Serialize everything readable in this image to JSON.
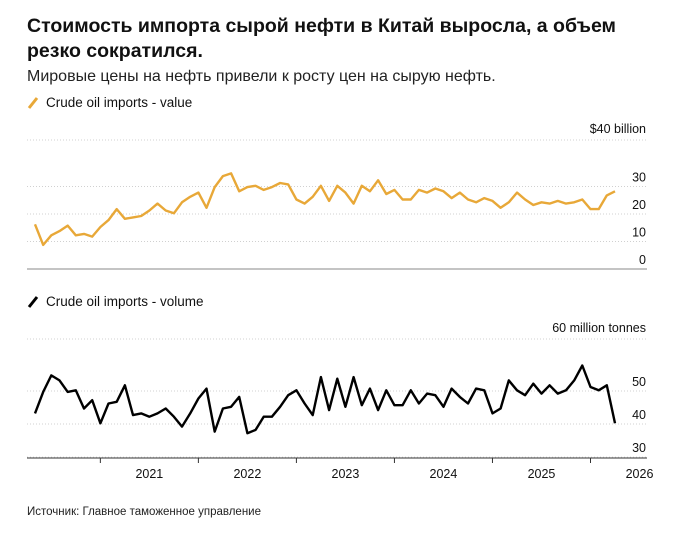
{
  "title": "Стоимость импорта сырой нефти в Китай выросла, а объем резко сократился.",
  "subtitle": "Мировые цены на нефть привели к росту цен на сырую нефть.",
  "source": "Источник: Главное таможенное управление",
  "colors": {
    "value": "#e8a838",
    "volume": "#000000",
    "grid": "#d0d0d0",
    "axis": "#333333"
  },
  "x_ticks": [
    "2021",
    "2022",
    "2023",
    "2024",
    "2025",
    "2026"
  ],
  "chart_data": [
    {
      "type": "line",
      "legend": "Crude oil imports - value",
      "y_unit_label": "$40 billion",
      "y_ticks": [
        "30",
        "20",
        "10",
        "0"
      ],
      "ylim": [
        0,
        40
      ],
      "xlim": [
        "2020-05",
        "2026-04"
      ],
      "grid": true,
      "series": [
        {
          "name": "Crude oil imports - value",
          "x": [
            "2020-05",
            "2020-06",
            "2020-07",
            "2020-08",
            "2020-09",
            "2020-10",
            "2020-11",
            "2020-12",
            "2021-01",
            "2021-02",
            "2021-03",
            "2021-04",
            "2021-05",
            "2021-06",
            "2021-07",
            "2021-08",
            "2021-09",
            "2021-10",
            "2021-11",
            "2021-12",
            "2022-01",
            "2022-02",
            "2022-03",
            "2022-04",
            "2022-05",
            "2022-06",
            "2022-07",
            "2022-08",
            "2022-09",
            "2022-10",
            "2022-11",
            "2022-12",
            "2023-01",
            "2023-02",
            "2023-03",
            "2023-04",
            "2023-05",
            "2023-06",
            "2023-07",
            "2023-08",
            "2023-09",
            "2023-10",
            "2023-11",
            "2023-12",
            "2024-01",
            "2024-02",
            "2024-03",
            "2024-04",
            "2024-05",
            "2024-06",
            "2024-07",
            "2024-08",
            "2024-09",
            "2024-10",
            "2024-11",
            "2024-12",
            "2025-01",
            "2025-02",
            "2025-03",
            "2025-04",
            "2025-05",
            "2025-06",
            "2025-07",
            "2025-08",
            "2025-09",
            "2025-10",
            "2025-11",
            "2025-12",
            "2026-01",
            "2026-02",
            "2026-03",
            "2026-04"
          ],
          "values": [
            13,
            5.5,
            9,
            10.5,
            12.5,
            9,
            9.5,
            8.5,
            12,
            14.5,
            18.5,
            15,
            15.5,
            16,
            18,
            20.5,
            18,
            17,
            21,
            23,
            24.5,
            19,
            26.5,
            30.5,
            31.5,
            25,
            26.5,
            27,
            25.5,
            26.5,
            28,
            27.5,
            22,
            20.5,
            23,
            27,
            21.5,
            27,
            24.5,
            20.5,
            27,
            25,
            29,
            24,
            25.5,
            22,
            22,
            25.5,
            24.5,
            26,
            25,
            22.5,
            24.5,
            22,
            21,
            22.5,
            21.5,
            19,
            21,
            24.5,
            22,
            20,
            21,
            20.5,
            21.5,
            20.5,
            21,
            22,
            18.5,
            18.5,
            23.5,
            25
          ]
        }
      ]
    },
    {
      "type": "line",
      "legend": "Crude oil imports - volume",
      "y_unit_label": "60 million tonnes",
      "y_ticks": [
        "50",
        "40",
        "30"
      ],
      "ylim": [
        27,
        60
      ],
      "xlim": [
        "2020-05",
        "2026-04"
      ],
      "grid": true,
      "series": [
        {
          "name": "Crude oil imports - volume",
          "x": [
            "2020-05",
            "2020-06",
            "2020-07",
            "2020-08",
            "2020-09",
            "2020-10",
            "2020-11",
            "2020-12",
            "2021-01",
            "2021-02",
            "2021-03",
            "2021-04",
            "2021-05",
            "2021-06",
            "2021-07",
            "2021-08",
            "2021-09",
            "2021-10",
            "2021-11",
            "2021-12",
            "2022-01",
            "2022-02",
            "2022-03",
            "2022-04",
            "2022-05",
            "2022-06",
            "2022-07",
            "2022-08",
            "2022-09",
            "2022-10",
            "2022-11",
            "2022-12",
            "2023-01",
            "2023-02",
            "2023-03",
            "2023-04",
            "2023-05",
            "2023-06",
            "2023-07",
            "2023-08",
            "2023-09",
            "2023-10",
            "2023-11",
            "2023-12",
            "2024-01",
            "2024-02",
            "2024-03",
            "2024-04",
            "2024-05",
            "2024-06",
            "2024-07",
            "2024-08",
            "2024-09",
            "2024-10",
            "2024-11",
            "2024-12",
            "2025-01",
            "2025-02",
            "2025-03",
            "2025-04",
            "2025-05",
            "2025-06",
            "2025-07",
            "2025-08",
            "2025-09",
            "2025-10",
            "2025-11",
            "2025-12",
            "2026-01",
            "2026-02",
            "2026-03",
            "2026-04"
          ],
          "values": [
            40.5,
            47,
            52,
            50.5,
            47,
            47.5,
            42,
            44.5,
            37.5,
            43.5,
            44,
            49,
            40,
            40.5,
            39.5,
            40.5,
            42,
            39.5,
            36.5,
            40.5,
            45,
            48,
            35,
            42,
            42.5,
            45.5,
            34.5,
            35.5,
            39.5,
            39.5,
            42.5,
            46,
            47.5,
            43.5,
            40,
            51.5,
            41.5,
            51,
            42.5,
            51.5,
            43,
            48,
            41.5,
            47.5,
            43,
            43,
            47.5,
            43.5,
            46.5,
            46,
            42.5,
            48,
            45.5,
            43.5,
            48,
            47.5,
            40.5,
            42,
            50.5,
            47.5,
            46,
            49.5,
            46.5,
            49,
            46.5,
            47.5,
            50.5,
            55,
            48.5,
            47.5,
            49,
            37.5
          ]
        }
      ]
    }
  ]
}
